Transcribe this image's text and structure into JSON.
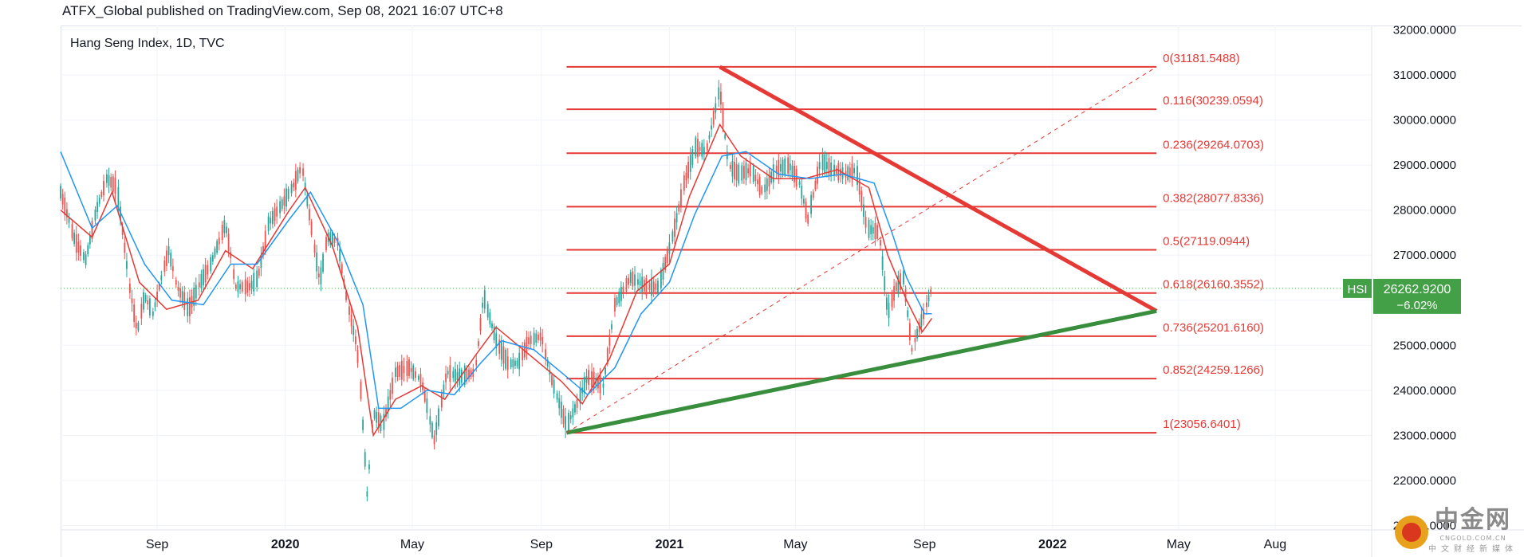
{
  "header": {
    "published_line": "ATFX_Global published on TradingView.com, Sep 08, 2021 16:07 UTC+8"
  },
  "chart_data": {
    "type": "line",
    "title": "Hang Seng Index, 1D, TVC",
    "symbol": "HSI",
    "last_price": "26262.9200",
    "change_pct": "−6.02%",
    "x_ticks": [
      {
        "label": "Sep",
        "date": "2019-09-01",
        "bold": false
      },
      {
        "label": "2020",
        "date": "2020-01-01",
        "bold": true
      },
      {
        "label": "May",
        "date": "2020-05-01",
        "bold": false
      },
      {
        "label": "Sep",
        "date": "2020-09-01",
        "bold": false
      },
      {
        "label": "2021",
        "date": "2021-01-01",
        "bold": true
      },
      {
        "label": "May",
        "date": "2021-05-01",
        "bold": false
      },
      {
        "label": "Sep",
        "date": "2021-09-01",
        "bold": false
      },
      {
        "label": "2022",
        "date": "2022-01-01",
        "bold": true
      },
      {
        "label": "May",
        "date": "2022-05-01",
        "bold": false
      },
      {
        "label": "Aug",
        "date": "2022-08-01",
        "bold": false
      }
    ],
    "y_ticks": [
      "32000.0000",
      "31000.0000",
      "30000.0000",
      "29000.0000",
      "28000.0000",
      "27000.0000",
      "26000.0000",
      "25000.0000",
      "24000.0000",
      "23000.0000",
      "22000.0000",
      "21000.0000"
    ],
    "y_range": [
      20900,
      32100
    ],
    "x_range": [
      "2019-06-01",
      "2022-11-01"
    ],
    "price_series": {
      "name": "",
      "points": [
        [
          "2019-06-01",
          28400
        ],
        [
          "2019-06-15",
          27300
        ],
        [
          "2019-06-25",
          26900
        ],
        [
          "2019-07-05",
          28000
        ],
        [
          "2019-07-15",
          28700
        ],
        [
          "2019-07-25",
          28500
        ],
        [
          "2019-08-05",
          26400
        ],
        [
          "2019-08-13",
          25300
        ],
        [
          "2019-08-20",
          26100
        ],
        [
          "2019-08-28",
          25700
        ],
        [
          "2019-09-05",
          26500
        ],
        [
          "2019-09-12",
          27100
        ],
        [
          "2019-09-20",
          26300
        ],
        [
          "2019-10-01",
          25800
        ],
        [
          "2019-10-10",
          26300
        ],
        [
          "2019-10-22",
          26800
        ],
        [
          "2019-11-05",
          27700
        ],
        [
          "2019-11-15",
          26300
        ],
        [
          "2019-11-28",
          26300
        ],
        [
          "2019-12-06",
          26500
        ],
        [
          "2019-12-16",
          27700
        ],
        [
          "2019-12-31",
          28200
        ],
        [
          "2020-01-10",
          28600
        ],
        [
          "2020-01-17",
          29000
        ],
        [
          "2020-01-24",
          27900
        ],
        [
          "2020-02-03",
          26400
        ],
        [
          "2020-02-10",
          27400
        ],
        [
          "2020-02-20",
          27300
        ],
        [
          "2020-02-28",
          26100
        ],
        [
          "2020-03-09",
          25000
        ],
        [
          "2020-03-13",
          24000
        ],
        [
          "2020-03-19",
          21700
        ],
        [
          "2020-03-25",
          23500
        ],
        [
          "2020-04-03",
          23200
        ],
        [
          "2020-04-15",
          24400
        ],
        [
          "2020-04-28",
          24500
        ],
        [
          "2020-05-10",
          24200
        ],
        [
          "2020-05-22",
          22900
        ],
        [
          "2020-06-03",
          24400
        ],
        [
          "2020-06-15",
          24300
        ],
        [
          "2020-06-30",
          24400
        ],
        [
          "2020-07-08",
          26100
        ],
        [
          "2020-07-20",
          25100
        ],
        [
          "2020-07-31",
          24600
        ],
        [
          "2020-08-10",
          24600
        ],
        [
          "2020-08-20",
          25100
        ],
        [
          "2020-09-01",
          25200
        ],
        [
          "2020-09-10",
          24300
        ],
        [
          "2020-09-25",
          23200
        ],
        [
          "2020-10-05",
          23700
        ],
        [
          "2020-10-15",
          24300
        ],
        [
          "2020-10-30",
          24100
        ],
        [
          "2020-11-10",
          25900
        ],
        [
          "2020-11-25",
          26500
        ],
        [
          "2020-12-10",
          26300
        ],
        [
          "2020-12-22",
          26300
        ],
        [
          "2021-01-05",
          27500
        ],
        [
          "2021-01-15",
          28600
        ],
        [
          "2021-01-26",
          29400
        ],
        [
          "2021-02-05",
          29300
        ],
        [
          "2021-02-18",
          30700
        ],
        [
          "2021-02-26",
          29000
        ],
        [
          "2021-03-08",
          28800
        ],
        [
          "2021-03-20",
          28900
        ],
        [
          "2021-03-31",
          28400
        ],
        [
          "2021-04-12",
          28900
        ],
        [
          "2021-04-25",
          29000
        ],
        [
          "2021-05-05",
          28600
        ],
        [
          "2021-05-13",
          27800
        ],
        [
          "2021-05-25",
          29100
        ],
        [
          "2021-06-05",
          28900
        ],
        [
          "2021-06-18",
          28800
        ],
        [
          "2021-06-28",
          28900
        ],
        [
          "2021-07-08",
          27600
        ],
        [
          "2021-07-20",
          27500
        ],
        [
          "2021-07-28",
          25700
        ],
        [
          "2021-08-05",
          26300
        ],
        [
          "2021-08-12",
          26500
        ],
        [
          "2021-08-20",
          24900
        ],
        [
          "2021-08-27",
          25400
        ],
        [
          "2021-09-03",
          25900
        ],
        [
          "2021-09-08",
          26263
        ]
      ]
    },
    "moving_averages": [
      {
        "name": "",
        "color": "#e53935",
        "points": [
          [
            "2019-06-01",
            28000
          ],
          [
            "2019-07-01",
            27400
          ],
          [
            "2019-07-20",
            28400
          ],
          [
            "2019-08-15",
            26400
          ],
          [
            "2019-09-10",
            25800
          ],
          [
            "2019-10-10",
            26000
          ],
          [
            "2019-11-05",
            27100
          ],
          [
            "2019-12-01",
            26700
          ],
          [
            "2020-01-05",
            28000
          ],
          [
            "2020-01-20",
            28500
          ],
          [
            "2020-02-15",
            27200
          ],
          [
            "2020-03-10",
            25400
          ],
          [
            "2020-03-25",
            23000
          ],
          [
            "2020-04-15",
            23800
          ],
          [
            "2020-05-10",
            24100
          ],
          [
            "2020-06-01",
            23800
          ],
          [
            "2020-07-01",
            24800
          ],
          [
            "2020-07-20",
            25400
          ],
          [
            "2020-08-20",
            24800
          ],
          [
            "2020-09-20",
            24200
          ],
          [
            "2020-10-10",
            23700
          ],
          [
            "2020-11-05",
            24700
          ],
          [
            "2020-12-01",
            26200
          ],
          [
            "2021-01-01",
            26800
          ],
          [
            "2021-01-20",
            28300
          ],
          [
            "2021-02-18",
            29900
          ],
          [
            "2021-03-10",
            29200
          ],
          [
            "2021-04-10",
            28700
          ],
          [
            "2021-05-10",
            28700
          ],
          [
            "2021-06-10",
            28900
          ],
          [
            "2021-07-10",
            28500
          ],
          [
            "2021-07-28",
            27000
          ],
          [
            "2021-08-15",
            26000
          ],
          [
            "2021-08-30",
            25300
          ],
          [
            "2021-09-08",
            25600
          ]
        ]
      },
      {
        "name": "",
        "color": "#2196f3",
        "points": [
          [
            "2019-06-01",
            29300
          ],
          [
            "2019-07-01",
            27600
          ],
          [
            "2019-07-25",
            28100
          ],
          [
            "2019-08-20",
            26800
          ],
          [
            "2019-09-15",
            26000
          ],
          [
            "2019-10-15",
            25900
          ],
          [
            "2019-11-10",
            26800
          ],
          [
            "2019-12-05",
            26800
          ],
          [
            "2020-01-05",
            27800
          ],
          [
            "2020-01-25",
            28400
          ],
          [
            "2020-02-20",
            27300
          ],
          [
            "2020-03-15",
            25900
          ],
          [
            "2020-03-30",
            23600
          ],
          [
            "2020-04-20",
            23600
          ],
          [
            "2020-05-15",
            24000
          ],
          [
            "2020-06-10",
            23900
          ],
          [
            "2020-07-05",
            24600
          ],
          [
            "2020-07-25",
            25100
          ],
          [
            "2020-08-25",
            24900
          ],
          [
            "2020-09-25",
            24300
          ],
          [
            "2020-10-15",
            23900
          ],
          [
            "2020-11-10",
            24500
          ],
          [
            "2020-12-05",
            25700
          ],
          [
            "2021-01-01",
            26400
          ],
          [
            "2021-01-25",
            27900
          ],
          [
            "2021-02-20",
            29200
          ],
          [
            "2021-03-15",
            29300
          ],
          [
            "2021-04-15",
            28800
          ],
          [
            "2021-05-15",
            28700
          ],
          [
            "2021-06-15",
            28800
          ],
          [
            "2021-07-15",
            28600
          ],
          [
            "2021-08-01",
            27500
          ],
          [
            "2021-08-15",
            26500
          ],
          [
            "2021-09-01",
            25700
          ],
          [
            "2021-09-08",
            25700
          ]
        ]
      }
    ],
    "fibonacci": {
      "start_date": "2020-09-25",
      "end_date": "2022-04-10",
      "levels": [
        {
          "ratio": "0",
          "price": 31181.5488,
          "label": "0(31181.5488)"
        },
        {
          "ratio": "0.116",
          "price": 30239.0594,
          "label": "0.116(30239.0594)"
        },
        {
          "ratio": "0.236",
          "price": 29264.0703,
          "label": "0.236(29264.0703)"
        },
        {
          "ratio": "0.382",
          "price": 28077.8336,
          "label": "0.382(28077.8336)"
        },
        {
          "ratio": "0.5",
          "price": 27119.0944,
          "label": "0.5(27119.0944)"
        },
        {
          "ratio": "0.618",
          "price": 26160.3552,
          "label": "0.618(26160.3552)"
        },
        {
          "ratio": "0.736",
          "price": 25201.616,
          "label": "0.736(25201.6160)"
        },
        {
          "ratio": "0.852",
          "price": 24259.1266,
          "label": "0.852(24259.1266)"
        },
        {
          "ratio": "1",
          "price": 23056.6401,
          "label": "1(23056.6401)"
        }
      ],
      "color": "#e53935"
    },
    "trendlines": [
      {
        "color": "#e53935",
        "from": [
          "2021-02-18",
          31181.5
        ],
        "to": [
          "2022-04-10",
          25760
        ]
      },
      {
        "color": "#388e3c",
        "from": [
          "2020-09-25",
          23056.6
        ],
        "to": [
          "2022-04-10",
          25760
        ]
      },
      {
        "color": "#e53935",
        "dashed": true,
        "from": [
          "2020-09-25",
          23056.6
        ],
        "to": [
          "2022-04-10",
          31181.5
        ]
      }
    ],
    "grid": true,
    "legend": ""
  },
  "watermark": {
    "text": "中金网",
    "sub": "CNGOLD.COM.CN",
    "sub2": "中文财经新媒体"
  }
}
